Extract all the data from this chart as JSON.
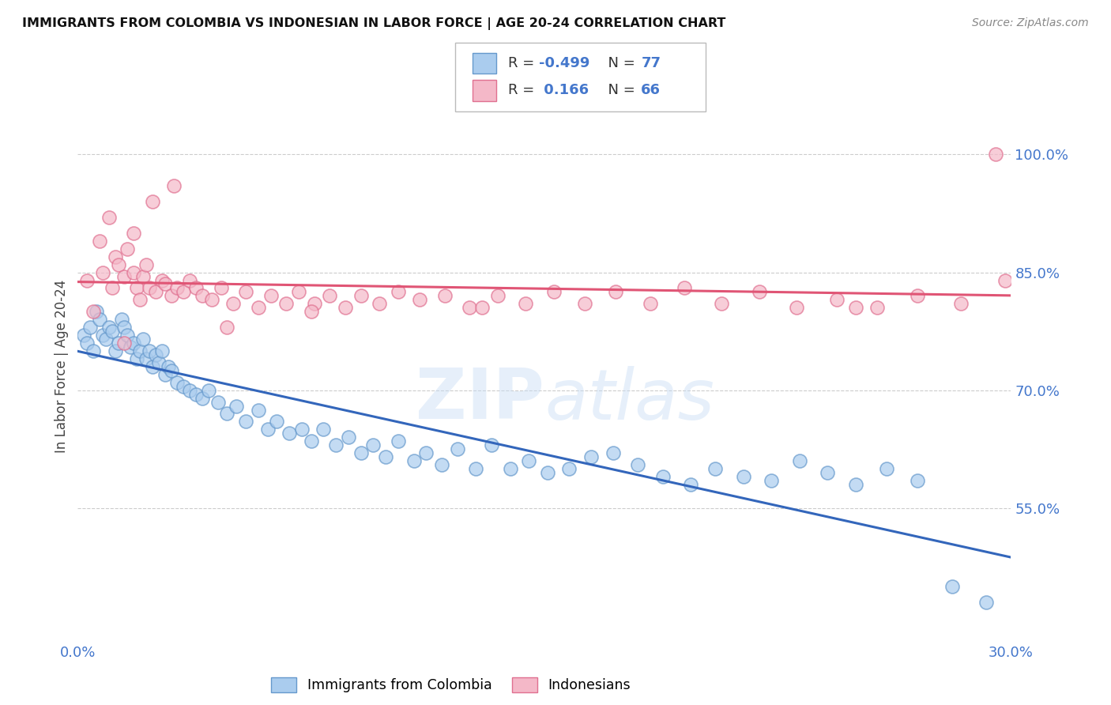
{
  "title": "IMMIGRANTS FROM COLOMBIA VS INDONESIAN IN LABOR FORCE | AGE 20-24 CORRELATION CHART",
  "source": "Source: ZipAtlas.com",
  "ylabel": "In Labor Force | Age 20-24",
  "y_ticks": [
    55.0,
    70.0,
    85.0,
    100.0
  ],
  "y_tick_labels": [
    "55.0%",
    "70.0%",
    "85.0%",
    "100.0%"
  ],
  "x_lim": [
    0.0,
    30.0
  ],
  "y_lim": [
    38.0,
    108.0
  ],
  "colombia_color": "#aaccee",
  "indonesia_color": "#f4b8c8",
  "colombia_edge": "#6699cc",
  "indonesia_edge": "#e07090",
  "line_color_colombia": "#3366bb",
  "line_color_indonesia": "#e05575",
  "legend_r_col": "-0.499",
  "legend_n_col": "77",
  "legend_r_ind": "0.166",
  "legend_n_ind": "66",
  "watermark_zip": "ZIP",
  "watermark_atlas": "atlas",
  "colombia_scatter_x": [
    0.2,
    0.3,
    0.4,
    0.5,
    0.6,
    0.7,
    0.8,
    0.9,
    1.0,
    1.1,
    1.2,
    1.3,
    1.4,
    1.5,
    1.6,
    1.7,
    1.8,
    1.9,
    2.0,
    2.1,
    2.2,
    2.3,
    2.4,
    2.5,
    2.6,
    2.7,
    2.8,
    2.9,
    3.0,
    3.2,
    3.4,
    3.6,
    3.8,
    4.0,
    4.2,
    4.5,
    4.8,
    5.1,
    5.4,
    5.8,
    6.1,
    6.4,
    6.8,
    7.2,
    7.5,
    7.9,
    8.3,
    8.7,
    9.1,
    9.5,
    9.9,
    10.3,
    10.8,
    11.2,
    11.7,
    12.2,
    12.8,
    13.3,
    13.9,
    14.5,
    15.1,
    15.8,
    16.5,
    17.2,
    18.0,
    18.8,
    19.7,
    20.5,
    21.4,
    22.3,
    23.2,
    24.1,
    25.0,
    26.0,
    27.0,
    28.1,
    29.2
  ],
  "colombia_scatter_y": [
    77.0,
    76.0,
    78.0,
    75.0,
    80.0,
    79.0,
    77.0,
    76.5,
    78.0,
    77.5,
    75.0,
    76.0,
    79.0,
    78.0,
    77.0,
    75.5,
    76.0,
    74.0,
    75.0,
    76.5,
    74.0,
    75.0,
    73.0,
    74.5,
    73.5,
    75.0,
    72.0,
    73.0,
    72.5,
    71.0,
    70.5,
    70.0,
    69.5,
    69.0,
    70.0,
    68.5,
    67.0,
    68.0,
    66.0,
    67.5,
    65.0,
    66.0,
    64.5,
    65.0,
    63.5,
    65.0,
    63.0,
    64.0,
    62.0,
    63.0,
    61.5,
    63.5,
    61.0,
    62.0,
    60.5,
    62.5,
    60.0,
    63.0,
    60.0,
    61.0,
    59.5,
    60.0,
    61.5,
    62.0,
    60.5,
    59.0,
    58.0,
    60.0,
    59.0,
    58.5,
    61.0,
    59.5,
    58.0,
    60.0,
    58.5,
    45.0,
    43.0
  ],
  "indonesia_scatter_x": [
    0.3,
    0.5,
    0.7,
    0.8,
    1.0,
    1.1,
    1.2,
    1.3,
    1.5,
    1.6,
    1.8,
    1.9,
    2.1,
    2.2,
    2.3,
    2.5,
    2.7,
    2.8,
    3.0,
    3.2,
    3.4,
    3.6,
    3.8,
    4.0,
    4.3,
    4.6,
    5.0,
    5.4,
    5.8,
    6.2,
    6.7,
    7.1,
    7.6,
    8.1,
    8.6,
    9.1,
    9.7,
    10.3,
    11.0,
    11.8,
    12.6,
    13.5,
    14.4,
    15.3,
    16.3,
    17.3,
    18.4,
    19.5,
    20.7,
    21.9,
    23.1,
    24.4,
    25.7,
    27.0,
    28.4,
    29.8,
    1.5,
    1.8,
    2.0,
    2.4,
    3.1,
    4.8,
    7.5,
    13.0,
    25.0,
    29.5
  ],
  "indonesia_scatter_y": [
    84.0,
    80.0,
    89.0,
    85.0,
    92.0,
    83.0,
    87.0,
    86.0,
    84.5,
    88.0,
    85.0,
    83.0,
    84.5,
    86.0,
    83.0,
    82.5,
    84.0,
    83.5,
    82.0,
    83.0,
    82.5,
    84.0,
    83.0,
    82.0,
    81.5,
    83.0,
    81.0,
    82.5,
    80.5,
    82.0,
    81.0,
    82.5,
    81.0,
    82.0,
    80.5,
    82.0,
    81.0,
    82.5,
    81.5,
    82.0,
    80.5,
    82.0,
    81.0,
    82.5,
    81.0,
    82.5,
    81.0,
    83.0,
    81.0,
    82.5,
    80.5,
    81.5,
    80.5,
    82.0,
    81.0,
    84.0,
    76.0,
    90.0,
    81.5,
    94.0,
    96.0,
    78.0,
    80.0,
    80.5,
    80.5,
    100.0
  ],
  "background_color": "#ffffff",
  "grid_color": "#cccccc"
}
